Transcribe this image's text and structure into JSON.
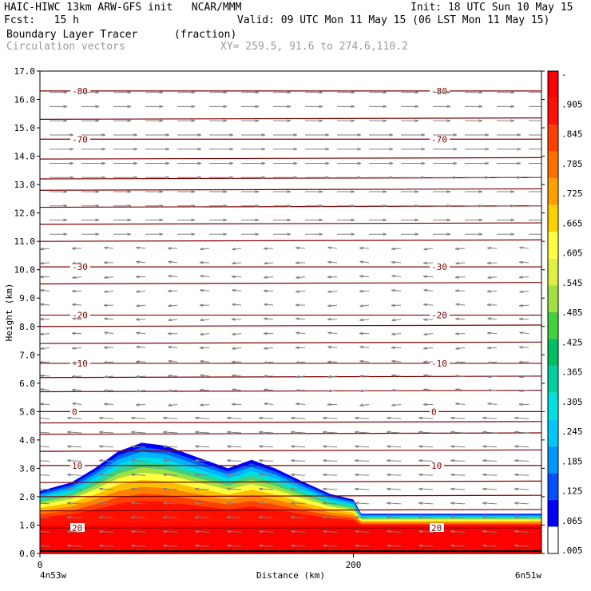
{
  "header": {
    "line1_left": "HAIC-HIWC 13km ARW-GFS init   NCAR/MMM",
    "line1_right": "Init: 18 UTC Sun 10 May 15",
    "line2_left": "Fcst:   15 h",
    "line2_right": "Valid: 09 UTC Mon 11 May 15 (06 LST Mon 11 May 15)",
    "line3_field": "Boundary Layer Tracer",
    "line3_units": "(fraction)",
    "line4_vectors": "Circulation vectors",
    "line4_xy": "XY= 259.5, 91.6 to 274.6,110.2"
  },
  "axes": {
    "ylabel": "Height (km)",
    "xlabel": "Distance (km)",
    "x_start_label": "4n53w",
    "x_end_label": "6n51w"
  },
  "colors": {
    "contour": "#800000",
    "vector": "#808080",
    "terrain_line": "#000000"
  },
  "chart_data": {
    "type": "heatmap",
    "title": "Boundary Layer Tracer (fraction)",
    "xlabel": "Distance (km)",
    "ylabel": "Height (km)",
    "xlim": [
      0,
      320
    ],
    "ylim": [
      0,
      17
    ],
    "x_ticks": [
      0,
      200
    ],
    "y_ticks": [
      "0.0",
      "1.0",
      "2.0",
      "3.0",
      "4.0",
      "5.0",
      "6.0",
      "7.0",
      "8.0",
      "9.0",
      "10.0",
      "11.0",
      "12.0",
      "13.0",
      "14.0",
      "15.0",
      "16.0",
      "17.0"
    ],
    "colorbar_labels": [
      ".005",
      ".065",
      ".125",
      ".185",
      ".245",
      ".305",
      ".365",
      ".425",
      ".485",
      ".545",
      ".605",
      ".665",
      ".725",
      ".785",
      ".845",
      ".905",
      "-"
    ],
    "colorbar_colors": [
      "#ffffff",
      "#0000ff",
      "#0050ff",
      "#0096ff",
      "#00c8ff",
      "#00e0e0",
      "#00d0a0",
      "#00c060",
      "#40d040",
      "#a0e040",
      "#e0f040",
      "#ffff40",
      "#ffd000",
      "#ffa000",
      "#ff7000",
      "#ff4000",
      "#ff1000",
      "#ff0000"
    ],
    "tracer_profile_top_km": [
      {
        "x": 0,
        "top": 2.2
      },
      {
        "x": 20,
        "top": 2.5
      },
      {
        "x": 35,
        "top": 3.0
      },
      {
        "x": 50,
        "top": 3.6
      },
      {
        "x": 65,
        "top": 3.9
      },
      {
        "x": 80,
        "top": 3.8
      },
      {
        "x": 100,
        "top": 3.4
      },
      {
        "x": 120,
        "top": 3.0
      },
      {
        "x": 135,
        "top": 3.3
      },
      {
        "x": 150,
        "top": 3.0
      },
      {
        "x": 165,
        "top": 2.6
      },
      {
        "x": 185,
        "top": 2.1
      },
      {
        "x": 200,
        "top": 1.9
      },
      {
        "x": 205,
        "top": 1.4
      },
      {
        "x": 320,
        "top": 1.4
      }
    ],
    "temperature_contours": [
      {
        "label": "-80",
        "height_km": 16.3
      },
      {
        "label": "-70",
        "height_km": 14.6
      },
      {
        "label": "-30",
        "height_km": 10.1
      },
      {
        "label": "-20",
        "height_km": 8.4
      },
      {
        "label": "-10",
        "height_km": 6.7
      },
      {
        "label": "0",
        "height_km": 5.0
      },
      {
        "label": "10",
        "height_km": 3.1
      },
      {
        "label": "20",
        "height_km": 0.9
      }
    ]
  }
}
